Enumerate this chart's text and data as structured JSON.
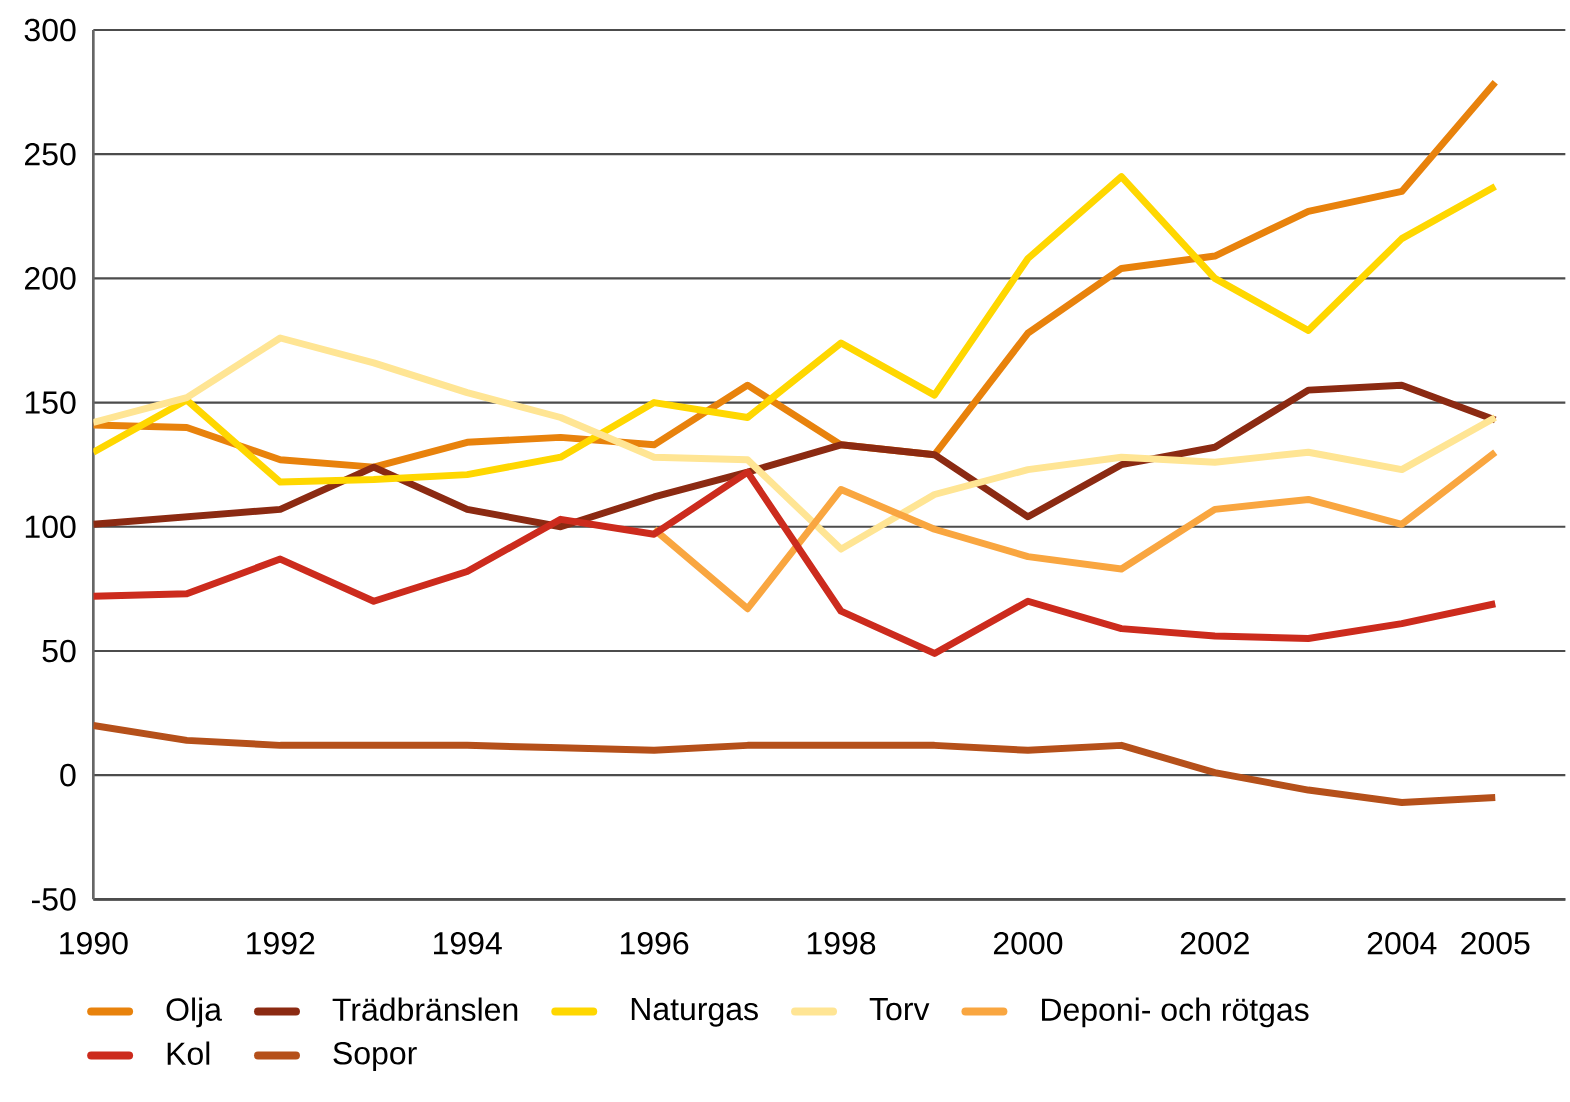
{
  "chart_data": {
    "type": "line",
    "categories": [
      "1990",
      null,
      "1992",
      null,
      "1994",
      null,
      "1996",
      null,
      "1998",
      null,
      "2000",
      null,
      "2002",
      null,
      "2004",
      "2005"
    ],
    "series": [
      {
        "name": "Olja",
        "color": "#e8820c",
        "values": [
          141,
          140,
          127,
          124,
          134,
          136,
          133,
          157,
          133,
          129,
          178,
          204,
          209,
          227,
          235,
          279
        ]
      },
      {
        "name": "Trädbränslen",
        "color": "#8b2a12",
        "values": [
          101,
          104,
          107,
          124,
          107,
          100,
          112,
          122,
          133,
          129,
          104,
          125,
          132,
          155,
          157,
          143
        ]
      },
      {
        "name": "Naturgas",
        "color": "#ffd700",
        "values": [
          130,
          151,
          118,
          119,
          121,
          128,
          150,
          144,
          174,
          153,
          208,
          241,
          200,
          179,
          216,
          237
        ]
      },
      {
        "name": "Torv",
        "color": "#ffe594",
        "values": [
          142,
          152,
          176,
          166,
          154,
          144,
          128,
          127,
          91,
          113,
          123,
          128,
          126,
          130,
          123,
          144
        ]
      },
      {
        "name": "Deponi- och rötgas",
        "color": "#f9a640",
        "values": [
          null,
          null,
          null,
          null,
          null,
          null,
          99,
          67,
          115,
          99,
          88,
          83,
          107,
          111,
          101,
          130
        ]
      },
      {
        "name": "Kol",
        "color": "#cc2b1d",
        "values": [
          72,
          73,
          87,
          70,
          82,
          103,
          97,
          122,
          66,
          49,
          70,
          59,
          56,
          55,
          61,
          69
        ]
      },
      {
        "name": "Sopor",
        "color": "#b5501a",
        "values": [
          20,
          14,
          12,
          12,
          12,
          11,
          10,
          12,
          12,
          12,
          10,
          12,
          1,
          -6,
          -11,
          -9
        ]
      }
    ],
    "ylim": [
      -50,
      300
    ],
    "yticks": [
      -50,
      0,
      50,
      100,
      150,
      200,
      250,
      300
    ],
    "grid": "y",
    "legend": "bottom",
    "marker": "none",
    "line_style": "solid"
  }
}
